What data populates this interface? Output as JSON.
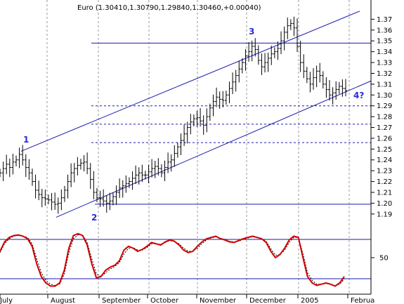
{
  "chart_data": [
    {
      "type": "line",
      "title": "Euro (1.30410,1.30790,1.29840,1.30460,+0.00040)",
      "ylim": [
        1.185,
        1.38
      ],
      "y_ticks": [
        "1.37",
        "1.36",
        "1.35",
        "1.34",
        "1.33",
        "1.32",
        "1.31",
        "1.30",
        "1.29",
        "1.28",
        "1.27",
        "1.26",
        "1.25",
        "1.24",
        "1.23",
        "1.22",
        "1.21",
        "1.20",
        "1.19"
      ],
      "x_ticks": [
        "July",
        "August",
        "September",
        "October",
        "November",
        "December",
        "2005",
        "Februa"
      ],
      "series": [
        {
          "values": [
            1.228,
            1.232,
            1.236,
            1.233,
            1.238,
            1.24,
            1.245,
            1.24,
            1.233,
            1.228,
            1.22,
            1.212,
            1.208,
            1.205,
            1.204,
            1.203,
            1.201,
            1.199,
            1.2,
            1.205,
            1.212,
            1.22,
            1.228,
            1.232,
            1.235,
            1.237,
            1.238,
            1.232,
            1.222,
            1.21,
            1.205,
            1.204,
            1.202,
            1.2,
            1.202,
            1.206,
            1.21,
            1.214,
            1.216,
            1.218,
            1.22,
            1.223,
            1.226,
            1.228,
            1.226,
            1.226,
            1.229,
            1.232,
            1.234,
            1.232,
            1.228,
            1.233,
            1.238,
            1.24,
            1.246,
            1.252,
            1.258,
            1.264,
            1.27,
            1.275,
            1.278,
            1.279,
            1.276,
            1.272,
            1.28,
            1.288,
            1.294,
            1.298,
            1.296,
            1.295,
            1.3,
            1.306,
            1.312,
            1.318,
            1.324,
            1.33,
            1.336,
            1.34,
            1.345,
            1.342,
            1.332,
            1.326,
            1.33,
            1.334,
            1.338,
            1.34,
            1.343,
            1.35,
            1.358,
            1.364,
            1.366,
            1.362,
            1.345,
            1.33,
            1.322,
            1.315,
            1.31,
            1.316,
            1.322,
            1.318,
            1.31,
            1.305,
            1.3,
            1.302,
            1.305,
            1.308,
            1.306,
            1.304
          ]
        }
      ],
      "channel_lines": [
        {
          "x": [
            "Jul 30",
            "Jan 31"
          ],
          "y": [
            1.248,
            1.377
          ]
        },
        {
          "x": [
            "Aug 15",
            "Feb 03"
          ],
          "y": [
            1.19,
            1.314
          ]
        }
      ],
      "horizontal_lines": [
        {
          "y": 1.348,
          "style": "solid"
        },
        {
          "y": 1.199,
          "style": "solid"
        },
        {
          "y": 1.29,
          "style": "dashed"
        },
        {
          "y": 1.273,
          "style": "dashed"
        },
        {
          "y": 1.256,
          "style": "dashed"
        }
      ],
      "annotations": [
        "1",
        "2",
        "3",
        "4?"
      ]
    },
    {
      "type": "line",
      "y_ticks": [
        "50"
      ],
      "reference_levels": [
        80,
        20
      ],
      "series": [
        {
          "values": [
            60,
            75,
            82,
            85,
            86,
            84,
            80,
            68,
            40,
            20,
            10,
            5,
            5,
            10,
            30,
            65,
            85,
            88,
            85,
            70,
            40,
            18,
            20,
            30,
            35,
            38,
            45,
            62,
            68,
            65,
            60,
            63,
            68,
            74,
            72,
            70,
            75,
            78,
            76,
            70,
            62,
            58,
            60,
            68,
            75,
            80,
            82,
            84,
            80,
            78,
            75,
            74,
            77,
            80,
            82,
            84,
            82,
            80,
            74,
            60,
            50,
            55,
            65,
            78,
            84,
            82,
            50,
            20,
            10,
            6,
            8,
            10,
            8,
            5,
            10,
            20
          ]
        },
        {
          "values": [
            58,
            72,
            80,
            84,
            85,
            84,
            82,
            72,
            48,
            26,
            14,
            8,
            6,
            8,
            24,
            58,
            80,
            86,
            86,
            74,
            48,
            24,
            20,
            26,
            32,
            36,
            42,
            56,
            65,
            66,
            62,
            62,
            66,
            72,
            72,
            71,
            74,
            77,
            76,
            72,
            65,
            60,
            60,
            65,
            72,
            78,
            81,
            83,
            81,
            79,
            76,
            75,
            76,
            79,
            81,
            83,
            82,
            80,
            76,
            64,
            54,
            55,
            62,
            74,
            82,
            82,
            56,
            26,
            14,
            8,
            8,
            9,
            8,
            6,
            8,
            16
          ]
        }
      ],
      "colors": [
        "#d40000",
        "#000000"
      ]
    }
  ]
}
